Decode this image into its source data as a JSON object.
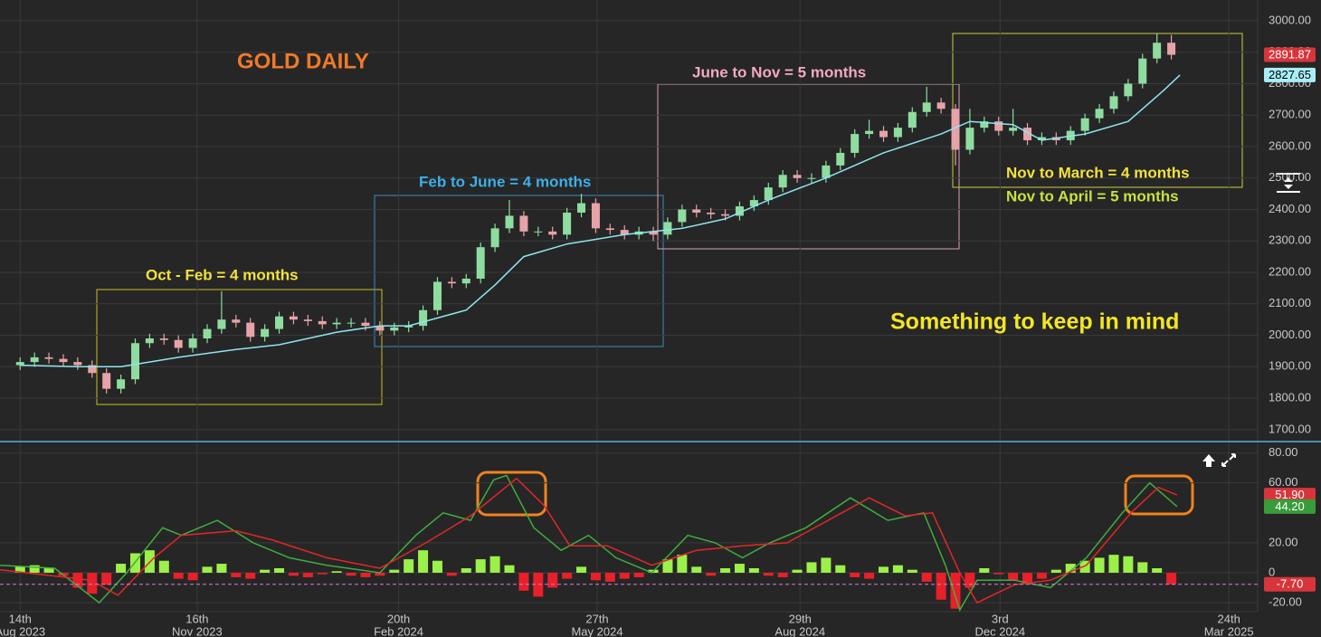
{
  "chart_data": [
    {
      "type": "candlestick",
      "title": "GOLD DAILY",
      "annotations": [
        "Oct - Feb = 4 months",
        "Feb to June = 4 months",
        "June to Nov = 5 months",
        "Nov to March = 4 months",
        "Nov to April = 5 months",
        "Something to keep in mind"
      ],
      "x": [
        0,
        1,
        2,
        3,
        4,
        5,
        6,
        7,
        8,
        9,
        10,
        11,
        12,
        13,
        14,
        15,
        16,
        17,
        18,
        19,
        20,
        21,
        22,
        23,
        24,
        25,
        26,
        27,
        28,
        29,
        30,
        31,
        32,
        33,
        34,
        35,
        36,
        37,
        38,
        39,
        40,
        41,
        42,
        43,
        44,
        45,
        46,
        47,
        48,
        49,
        50,
        51,
        52,
        53,
        54,
        55,
        56,
        57,
        58,
        59,
        60,
        61,
        62,
        63,
        64,
        65,
        66,
        67,
        68,
        69,
        70,
        71,
        72,
        73,
        74,
        75,
        76,
        77,
        78,
        79,
        80
      ],
      "open": [
        1905,
        1915,
        1930,
        1925,
        1915,
        1905,
        1880,
        1830,
        1860,
        1975,
        1990,
        1985,
        1960,
        1990,
        2020,
        2050,
        2040,
        1995,
        2020,
        2060,
        2050,
        2045,
        2035,
        2040,
        2040,
        2030,
        2015,
        2025,
        2030,
        2080,
        2170,
        2165,
        2180,
        2280,
        2340,
        2380,
        2330,
        2330,
        2320,
        2390,
        2420,
        2340,
        2335,
        2320,
        2330,
        2320,
        2360,
        2400,
        2390,
        2385,
        2380,
        2410,
        2430,
        2470,
        2510,
        2500,
        2500,
        2540,
        2580,
        2640,
        2650,
        2630,
        2660,
        2710,
        2740,
        2720,
        2590,
        2660,
        2680,
        2650,
        2660,
        2620,
        2630,
        2620,
        2650,
        2690,
        2720,
        2760,
        2800,
        2880,
        2930
      ],
      "high": [
        1930,
        1945,
        1945,
        1940,
        1930,
        1920,
        1895,
        1875,
        1990,
        2005,
        2005,
        2000,
        2005,
        2035,
        2140,
        2065,
        2055,
        2035,
        2075,
        2075,
        2065,
        2060,
        2055,
        2055,
        2055,
        2045,
        2040,
        2045,
        2095,
        2185,
        2185,
        2195,
        2295,
        2355,
        2430,
        2395,
        2345,
        2345,
        2405,
        2450,
        2435,
        2355,
        2350,
        2345,
        2345,
        2375,
        2415,
        2415,
        2405,
        2400,
        2425,
        2445,
        2485,
        2525,
        2525,
        2515,
        2555,
        2595,
        2655,
        2685,
        2665,
        2675,
        2725,
        2790,
        2755,
        2735,
        2720,
        2695,
        2695,
        2720,
        2675,
        2645,
        2645,
        2665,
        2705,
        2735,
        2775,
        2815,
        2895,
        2960,
        2955
      ],
      "low": [
        1890,
        1900,
        1910,
        1900,
        1890,
        1865,
        1815,
        1815,
        1845,
        1960,
        1970,
        1945,
        1945,
        1975,
        2005,
        2025,
        1980,
        1980,
        2005,
        2035,
        2030,
        2020,
        2020,
        2025,
        2015,
        2000,
        2000,
        2010,
        2015,
        2065,
        2150,
        2150,
        2165,
        2265,
        2325,
        2315,
        2315,
        2305,
        2305,
        2375,
        2325,
        2320,
        2305,
        2305,
        2300,
        2305,
        2345,
        2375,
        2370,
        2365,
        2365,
        2395,
        2415,
        2455,
        2485,
        2485,
        2485,
        2525,
        2565,
        2625,
        2615,
        2615,
        2645,
        2695,
        2705,
        2540,
        2575,
        2645,
        2635,
        2635,
        2605,
        2605,
        2605,
        2605,
        2635,
        2675,
        2705,
        2745,
        2785,
        2865,
        2877
      ],
      "close": [
        1915,
        1930,
        1925,
        1915,
        1905,
        1880,
        1830,
        1860,
        1975,
        1990,
        1985,
        1960,
        1990,
        2020,
        2050,
        2040,
        1995,
        2020,
        2060,
        2050,
        2045,
        2035,
        2040,
        2040,
        2030,
        2015,
        2025,
        2030,
        2080,
        2170,
        2165,
        2180,
        2280,
        2340,
        2380,
        2330,
        2330,
        2320,
        2390,
        2420,
        2340,
        2335,
        2320,
        2330,
        2320,
        2360,
        2400,
        2390,
        2385,
        2380,
        2410,
        2430,
        2470,
        2510,
        2500,
        2500,
        2540,
        2580,
        2640,
        2650,
        2630,
        2660,
        2710,
        2740,
        2720,
        2590,
        2660,
        2680,
        2650,
        2660,
        2620,
        2630,
        2620,
        2650,
        2690,
        2720,
        2760,
        2800,
        2880,
        2930,
        2891.87
      ],
      "up_color": "#8fdca0",
      "down_color": "#e6a3a8",
      "lines": [
        {
          "color": "#8ee6f0",
          "x": [
            0,
            4,
            7,
            11,
            15,
            18,
            22,
            25,
            27,
            31,
            33,
            35,
            38,
            42,
            46,
            49,
            52,
            56,
            60,
            64,
            66,
            69,
            71,
            74,
            77,
            79.5,
            80.6
          ],
          "values": [
            1905,
            1900,
            1900,
            1930,
            1955,
            1970,
            2010,
            2030,
            2030,
            2080,
            2160,
            2250,
            2290,
            2320,
            2340,
            2370,
            2430,
            2500,
            2580,
            2640,
            2680,
            2670,
            2620,
            2640,
            2680,
            2780,
            2827.65
          ]
        }
      ],
      "xlim": [
        -1.4,
        86
      ],
      "xticks": [
        {
          "value": 0,
          "label": "14th"
        },
        {
          "value": 12.3,
          "label": "16th"
        },
        {
          "value": 26.3,
          "label": "20th"
        },
        {
          "value": 40.1,
          "label": "27th"
        },
        {
          "value": 54.2,
          "label": "29th"
        },
        {
          "value": 68.1,
          "label": "3rd"
        },
        {
          "value": 84,
          "label": "24th"
        }
      ],
      "xtick_sublabels": [
        "Aug 2023",
        "Nov 2023",
        "Feb 2024",
        "May 2024",
        "Aug 2024",
        "Dec 2024",
        "Mar 2025"
      ],
      "ylim": [
        1665,
        3066
      ],
      "yticks": [
        {
          "value": 1700,
          "label": "1700.00"
        },
        {
          "value": 1800,
          "label": "1800.00"
        },
        {
          "value": 1900,
          "label": "1900.00"
        },
        {
          "value": 2000,
          "label": "2000.00"
        },
        {
          "value": 2100,
          "label": "2100.00"
        },
        {
          "value": 2200,
          "label": "2200.00"
        },
        {
          "value": 2300,
          "label": "2300.00"
        },
        {
          "value": 2400,
          "label": "2400.00"
        },
        {
          "value": 2500,
          "label": "2500.00"
        },
        {
          "value": 2600,
          "label": "2600.00"
        },
        {
          "value": 2700,
          "label": "2700.00"
        },
        {
          "value": 2800,
          "label": "2800.00"
        },
        {
          "value": 2900,
          "label": "2900.00"
        },
        {
          "value": 3000,
          "label": "3000.00"
        }
      ],
      "markers": [
        {
          "value": 2891.87,
          "label": "2891.87",
          "color": "#d7353b",
          "text_color": "#ffffff"
        },
        {
          "value": 2827.65,
          "label": "2827.65",
          "color": "#a9eef6",
          "text_color": "#000000"
        }
      ],
      "grid": true
    },
    {
      "type": "bar",
      "x": [
        0,
        1,
        2,
        3,
        4,
        5,
        6,
        7,
        8,
        9,
        10,
        11,
        12,
        13,
        14,
        15,
        16,
        17,
        18,
        19,
        20,
        21,
        22,
        23,
        24,
        25,
        26,
        27,
        28,
        29,
        30,
        31,
        32,
        33,
        34,
        35,
        36,
        37,
        38,
        39,
        40,
        41,
        42,
        43,
        44,
        45,
        46,
        47,
        48,
        49,
        50,
        51,
        52,
        53,
        54,
        55,
        56,
        57,
        58,
        59,
        60,
        61,
        62,
        63,
        64,
        65,
        66,
        67,
        68,
        69,
        70,
        71,
        72,
        73,
        74,
        75,
        76,
        77,
        78,
        79,
        80
      ],
      "values": [
        4,
        5,
        3,
        -2,
        -10,
        -14,
        -8,
        6,
        13,
        15,
        8,
        -4,
        -5,
        4,
        6,
        -3,
        -4,
        2,
        3,
        -2,
        -3,
        -1,
        1,
        -2,
        -3,
        -2,
        2,
        9,
        15,
        8,
        -2,
        3,
        9,
        11,
        5,
        -12,
        -16,
        -10,
        -4,
        4,
        -5,
        -6,
        -4,
        -3,
        2,
        9,
        12,
        4,
        -2,
        3,
        6,
        3,
        -2,
        -3,
        2,
        7,
        10,
        5,
        -3,
        -4,
        4,
        5,
        2,
        -6,
        -18,
        -24,
        -10,
        3,
        -1,
        -5,
        -7,
        -4,
        2,
        6,
        8,
        10,
        12,
        11,
        7,
        3,
        -7.7
      ],
      "positive_color": "#9cf04a",
      "negative_color": "#e8202a",
      "lines": [
        {
          "color": "#3fae3f",
          "x": [
            -1.4,
            2.4,
            5.5,
            7.4,
            9.9,
            11.2,
            13.7,
            16.2,
            18.7,
            21.3,
            25,
            27.5,
            29.4,
            31.3,
            32.9,
            33.8,
            35.7,
            37.6,
            39.5,
            41.4,
            43.9,
            46.4,
            48.3,
            50.2,
            52.1,
            54.6,
            57.7,
            60.3,
            62.8,
            64.3,
            65.3,
            66.5,
            69.1,
            71.6,
            74.1,
            76.6,
            78.5,
            80.4
          ],
          "values": [
            5,
            3,
            -20,
            0,
            30,
            25,
            35,
            20,
            10,
            5,
            0,
            25,
            40,
            35,
            62,
            65,
            30,
            15,
            25,
            10,
            0,
            25,
            20,
            10,
            20,
            30,
            50,
            35,
            40,
            5,
            -25,
            -5,
            -5,
            -10,
            10,
            40,
            60,
            44.2
          ]
        },
        {
          "color": "#e32626",
          "x": [
            -1.4,
            4.9,
            6.8,
            9.3,
            11.2,
            15,
            17.5,
            21.3,
            25,
            28.2,
            31.3,
            34.5,
            36.4,
            38.2,
            40.8,
            43.9,
            47,
            50.2,
            53.3,
            57.1,
            59,
            61.5,
            63.4,
            65.3,
            66.5,
            69.1,
            71.6,
            74.1,
            77.2,
            79.1,
            80.4
          ],
          "values": [
            2,
            -5,
            -15,
            10,
            25,
            28,
            22,
            10,
            3,
            20,
            38,
            63,
            45,
            18,
            18,
            5,
            15,
            18,
            20,
            40,
            50,
            38,
            40,
            0,
            -20,
            -8,
            -5,
            5,
            40,
            57,
            51.9
          ]
        }
      ],
      "xlim": [
        -1.4,
        86
      ],
      "ylim": [
        -26,
        87
      ],
      "yticks": [
        {
          "value": 80,
          "label": "80.00"
        },
        {
          "value": 60,
          "label": "60.00"
        },
        {
          "value": 20,
          "label": "20.00"
        },
        0,
        {
          "value": -20,
          "label": "-20.00"
        }
      ],
      "markers": [
        {
          "value": 51.9,
          "label": "51.90",
          "color": "#d7353b",
          "text_color": "#ffffff"
        },
        {
          "value": 44.2,
          "label": "44.20",
          "color": "#3a9b3a",
          "text_color": "#ffffff"
        },
        {
          "value": -7.7,
          "label": "-7.70",
          "color": "#d7353b",
          "text_color": "#ffffff",
          "line_color": "#d67fd6"
        }
      ],
      "grid": true
    }
  ]
}
